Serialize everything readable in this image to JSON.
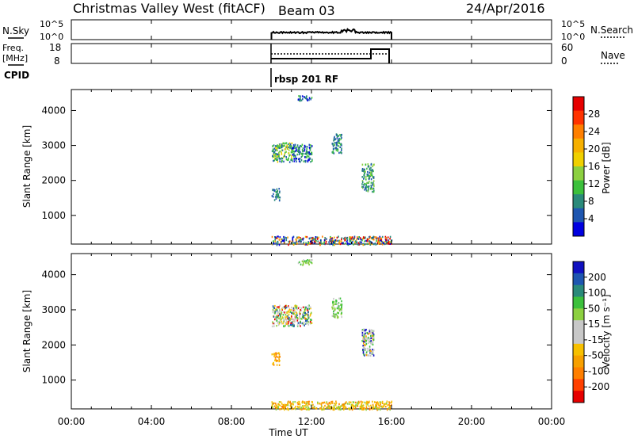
{
  "header": {
    "site": "Christmas Valley West (fitACF)",
    "beam": "Beam 03",
    "date": "24/Apr/2016"
  },
  "left_labels": {
    "nsky": "N.Sky",
    "freq_line1": "Freq.",
    "freq_line2": "[MHz]",
    "cpid": "CPID"
  },
  "right_labels": {
    "nsearch": "N.Search",
    "nave": "Nave"
  },
  "cpid_text": "rbsp 201 RF",
  "nsky_ticks": [
    "10^5",
    "10^0"
  ],
  "freq_ticks": [
    "18",
    "8"
  ],
  "nave_ticks": [
    "60",
    "0"
  ],
  "x_ticks": [
    "00:00",
    "04:00",
    "08:00",
    "12:00",
    "16:00",
    "20:00",
    "00:00"
  ],
  "x_label": "Time UT",
  "y_label": "Slant Range [km]",
  "y_ticks": [
    "1000",
    "2000",
    "3000",
    "4000"
  ],
  "power_colorbar": {
    "label": "Power [dB]",
    "ticks": [
      "28",
      "24",
      "20",
      "16",
      "12",
      "8",
      "4"
    ],
    "colors": [
      "#e60000",
      "#ff3300",
      "#ff7f00",
      "#f7b000",
      "#f0d000",
      "#8cd040",
      "#3cc03c",
      "#2a8a7a",
      "#1e56b0",
      "#0000e0"
    ]
  },
  "velocity_colorbar": {
    "label": "Velocity [m s⁻¹]",
    "ticks": [
      "200",
      "100",
      "50",
      "15",
      "-15",
      "-50",
      "-100",
      "-200"
    ],
    "colors": [
      "#1010c0",
      "#1e56b0",
      "#2a8a7a",
      "#3cc03c",
      "#8cd040",
      "#c8c8c8",
      "#c8c8c8",
      "#f7c000",
      "#f7a000",
      "#ff7f00",
      "#ff4000",
      "#e60000"
    ]
  },
  "chart_data": [
    {
      "type": "line",
      "panel": "N.Sky / N.Search",
      "x_range_hours": [
        0,
        24
      ],
      "active_interval_hours": [
        10,
        16
      ]
    },
    {
      "type": "line",
      "panel": "Freq / Nave",
      "x_range_hours": [
        0,
        24
      ],
      "freq_mhz_approx": 10.5,
      "nave_approx": [
        {
          "x": 10,
          "y": 20
        },
        {
          "x": 15,
          "y": 20
        },
        {
          "x": 15.05,
          "y": 28
        },
        {
          "x": 16,
          "y": 28
        }
      ]
    },
    {
      "type": "heatmap",
      "panel": "Power",
      "xlabel": "Time UT",
      "ylabel": "Slant Range [km]",
      "x_range_hours": [
        0,
        24
      ],
      "y_range_km": [
        180,
        4600
      ],
      "scatter_regions": [
        {
          "t0": 10.0,
          "t1": 11.0,
          "r0": 2550,
          "r1": 3100,
          "dominant": "green/yellow"
        },
        {
          "t0": 11.0,
          "t1": 12.0,
          "r0": 2550,
          "r1": 3050,
          "dominant": "blue"
        },
        {
          "t0": 13.0,
          "t1": 13.5,
          "r0": 2800,
          "r1": 3350,
          "dominant": "teal"
        },
        {
          "t0": 14.5,
          "t1": 15.1,
          "r0": 1700,
          "r1": 2500,
          "dominant": "blue/green"
        },
        {
          "t0": 10.0,
          "t1": 10.4,
          "r0": 1450,
          "r1": 1800,
          "dominant": "green/blue"
        },
        {
          "t0": 11.3,
          "t1": 12.0,
          "r0": 4300,
          "r1": 4450,
          "dominant": "blue"
        },
        {
          "t0": 10.0,
          "t1": 16.0,
          "r0": 180,
          "r1": 420,
          "dominant": "mixed"
        }
      ]
    },
    {
      "type": "heatmap",
      "panel": "Velocity",
      "xlabel": "Time UT",
      "ylabel": "Slant Range [km]",
      "x_range_hours": [
        0,
        24
      ],
      "y_range_km": [
        180,
        4600
      ],
      "scatter_regions": [
        {
          "t0": 10.0,
          "t1": 12.0,
          "r0": 2550,
          "r1": 3150,
          "dominant": "gray/green"
        },
        {
          "t0": 13.0,
          "t1": 13.5,
          "r0": 2800,
          "r1": 3350,
          "dominant": "green"
        },
        {
          "t0": 14.5,
          "t1": 15.1,
          "r0": 1700,
          "r1": 2500,
          "dominant": "gray"
        },
        {
          "t0": 10.0,
          "t1": 10.4,
          "r0": 1450,
          "r1": 1800,
          "dominant": "orange"
        },
        {
          "t0": 11.3,
          "t1": 12.0,
          "r0": 4300,
          "r1": 4450,
          "dominant": "green"
        },
        {
          "t0": 10.0,
          "t1": 16.0,
          "r0": 180,
          "r1": 420,
          "dominant": "yellow/orange"
        }
      ]
    }
  ]
}
